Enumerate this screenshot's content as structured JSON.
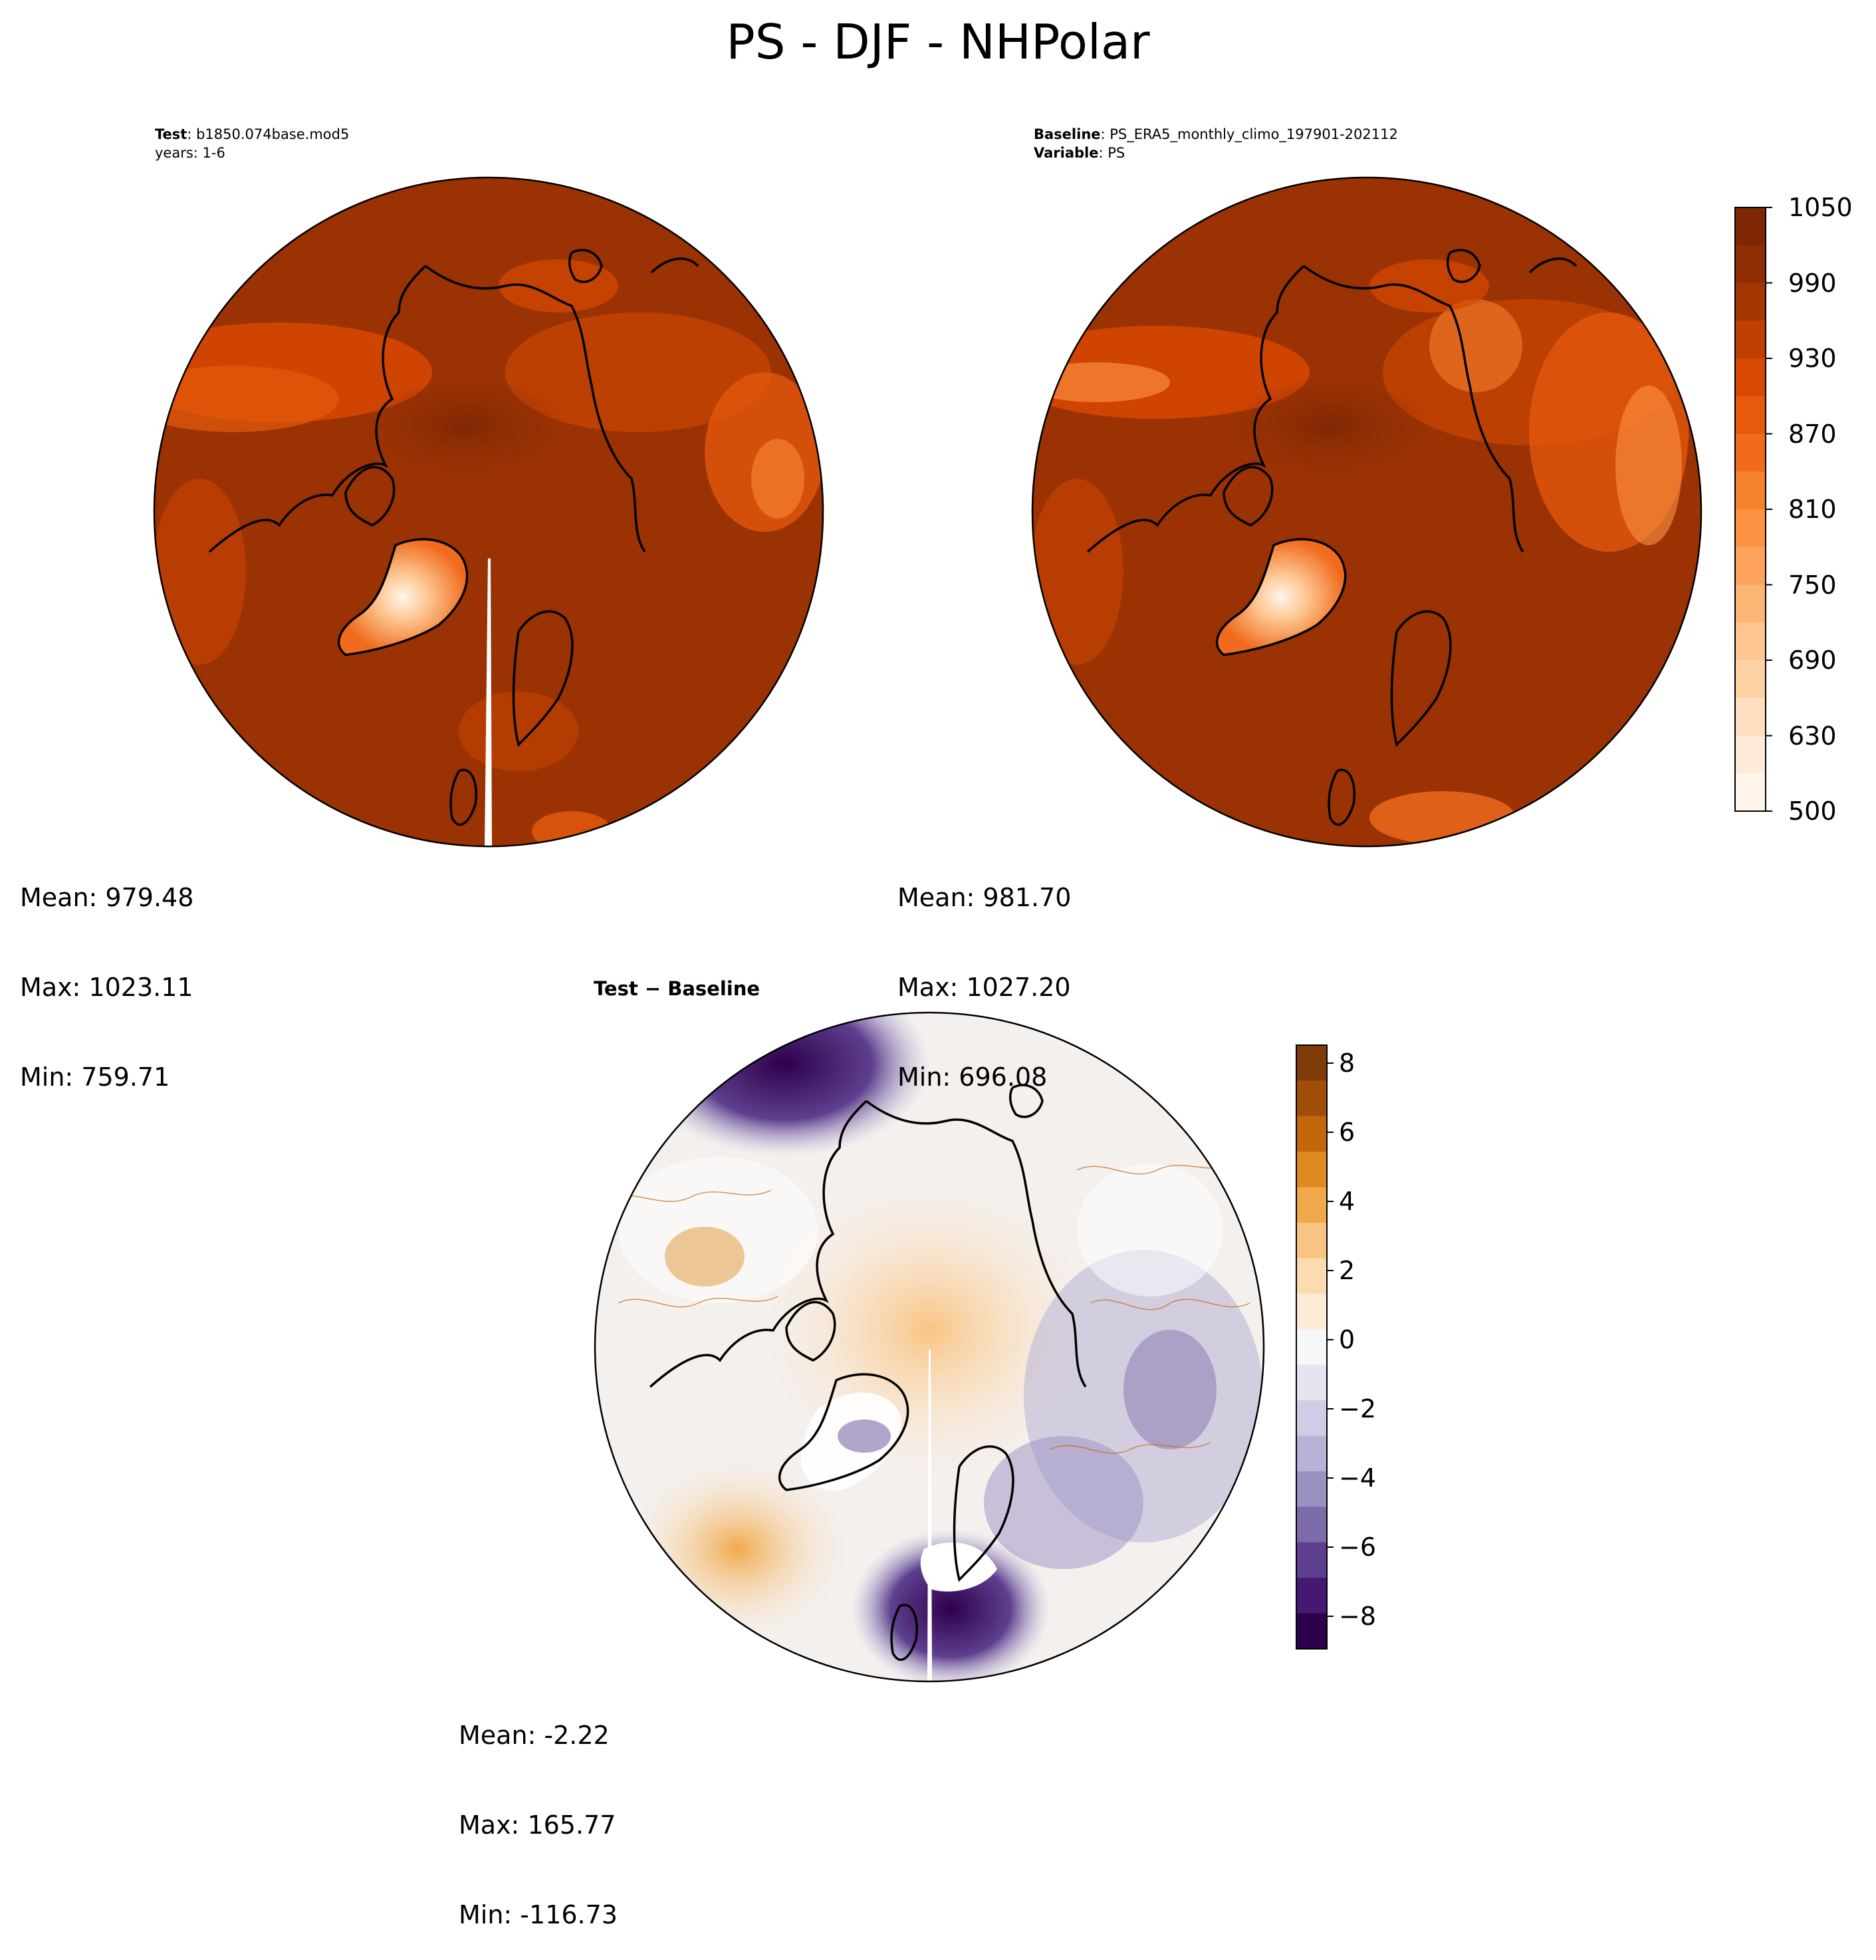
{
  "figure": {
    "title": "PS - DJF - NHPolar"
  },
  "panels": {
    "test": {
      "label_bold": "Test",
      "label_text": ": b1850.074base.mod5",
      "line2": "years: 1-6",
      "stats": {
        "mean": "Mean: 979.48",
        "max": "Max: 1023.11",
        "min": "Min: 759.71"
      }
    },
    "baseline": {
      "label_bold": "Baseline",
      "label_text": ": PS_ERA5_monthly_climo_197901-202112",
      "line2_bold": "Variable",
      "line2_text": ": PS",
      "stats": {
        "mean": "Mean: 981.70",
        "max": "Max: 1027.20",
        "min": "Min: 696.08"
      }
    },
    "difference": {
      "title": "Test − Baseline",
      "stats": {
        "mean": "Mean: -2.22",
        "max": "Max: 165.77",
        "min": "Min: -116.73"
      }
    }
  },
  "colorbars": {
    "absolute": {
      "colormap": "Oranges",
      "ticks": [
        "1050",
        "990",
        "930",
        "870",
        "810",
        "750",
        "690",
        "630",
        "500"
      ],
      "colors": [
        "#7f2704",
        "#8f2d04",
        "#a33603",
        "#bf4002",
        "#d94801",
        "#e65a0d",
        "#f06b1e",
        "#f5812f",
        "#fd9243",
        "#fda35c",
        "#fdb575",
        "#fdc690",
        "#fdd2a5",
        "#fee0c0",
        "#feebd9",
        "#fff5eb"
      ]
    },
    "difference": {
      "colormap": "PuOr_r",
      "ticks": [
        "8",
        "6",
        "4",
        "2",
        "0",
        "−2",
        "−4",
        "−6",
        "−8"
      ],
      "colors": [
        "#7f3b08",
        "#a14f08",
        "#c2680b",
        "#de8a1e",
        "#f0a94a",
        "#f9c483",
        "#fddbb0",
        "#fcebd6",
        "#f7f7f7",
        "#e4e5f0",
        "#cfcde5",
        "#b7b2d6",
        "#9a90c2",
        "#7d6aa8",
        "#5e3f8f",
        "#441873",
        "#2d004b"
      ]
    }
  }
}
